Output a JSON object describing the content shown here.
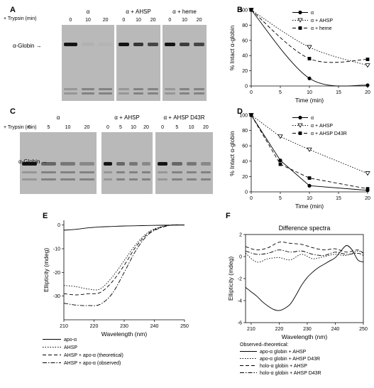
{
  "panels": {
    "A": {
      "letter": "A",
      "trypsin_label": "+ Trypsin (min)",
      "groups": [
        {
          "title": "α",
          "times": [
            "0",
            "10",
            "20"
          ]
        },
        {
          "title": "α + AHSP",
          "times": [
            "0",
            "10",
            "20"
          ]
        },
        {
          "title": "α + heme",
          "times": [
            "0",
            "10",
            "20"
          ]
        }
      ],
      "band_label": "α-Globin",
      "band_intensity": [
        [
          1,
          0.05,
          0.03
        ],
        [
          1,
          0.8,
          0.7
        ],
        [
          1,
          0.75,
          0.7
        ]
      ]
    },
    "C": {
      "letter": "C",
      "trypsin_label": "+ Trypsin (min)",
      "groups": [
        {
          "title": "α",
          "times": [
            "0",
            "5",
            "10",
            "20"
          ]
        },
        {
          "title": "α + AHSP",
          "times": [
            "0",
            "5",
            "10",
            "20"
          ]
        },
        {
          "title": "α + AHSP D43R",
          "times": [
            "0",
            "5",
            "10",
            "20"
          ]
        }
      ],
      "band_label": "α-Globin"
    },
    "E": {
      "letter": "E"
    },
    "F": {
      "letter": "F"
    },
    "B": {
      "letter": "B"
    },
    "D": {
      "letter": "D"
    }
  },
  "chart_data": [
    {
      "id": "B",
      "type": "line",
      "xlabel": "Time (min)",
      "ylabel": "% Intact α-globin",
      "xlim": [
        0,
        20
      ],
      "ylim": [
        0,
        100
      ],
      "xticks": [
        0,
        5,
        10,
        15,
        20
      ],
      "yticks": [
        0,
        20,
        40,
        60,
        80,
        100
      ],
      "legend_position": "top-right",
      "series": [
        {
          "name": "α",
          "style": "solid",
          "marker": "circle",
          "x": [
            0,
            10,
            20
          ],
          "y": [
            100,
            10,
            1
          ]
        },
        {
          "name": "α + AHSP",
          "style": "dotted",
          "marker": "triangle-down",
          "x": [
            0,
            10,
            20
          ],
          "y": [
            100,
            51,
            27
          ]
        },
        {
          "name": "α + heme",
          "style": "dashed",
          "marker": "square",
          "x": [
            0,
            10,
            20
          ],
          "y": [
            100,
            36,
            35
          ]
        }
      ]
    },
    {
      "id": "D",
      "type": "line",
      "xlabel": "Time (min)",
      "ylabel": "% Intact α-globin",
      "xlim": [
        0,
        20
      ],
      "ylim": [
        0,
        100
      ],
      "xticks": [
        0,
        5,
        10,
        15,
        20
      ],
      "yticks": [
        0,
        20,
        40,
        60,
        80,
        100
      ],
      "legend_position": "top-right",
      "series": [
        {
          "name": "α",
          "style": "solid",
          "marker": "circle",
          "x": [
            0,
            5,
            10,
            20
          ],
          "y": [
            100,
            41,
            8,
            2
          ]
        },
        {
          "name": "α + AHSP",
          "style": "dotted",
          "marker": "triangle-down",
          "x": [
            0,
            5,
            10,
            20
          ],
          "y": [
            100,
            72,
            55,
            24
          ]
        },
        {
          "name": "α + AHSP D43R",
          "style": "dashed",
          "marker": "square",
          "x": [
            0,
            5,
            10,
            20
          ],
          "y": [
            100,
            36,
            18,
            4
          ]
        }
      ]
    },
    {
      "id": "E",
      "type": "line",
      "xlabel": "Wavelength (nm)",
      "ylabel": "Ellipticity (mdeg)",
      "xlim": [
        210,
        250
      ],
      "ylim": [
        -40,
        2
      ],
      "xticks": [
        210,
        220,
        230,
        240,
        250
      ],
      "yticks": [
        0,
        -10,
        -20,
        -30
      ],
      "legend_position": "below",
      "series": [
        {
          "name": "apo-α",
          "style": "solid",
          "x": [
            210,
            214,
            218,
            222,
            226,
            230,
            234,
            238,
            242,
            246,
            250
          ],
          "y": [
            -2.2,
            -1.8,
            -1.2,
            -0.8,
            -0.6,
            -0.4,
            -0.3,
            -0.2,
            -0.1,
            -0.05,
            0
          ]
        },
        {
          "name": "AHSP",
          "style": "dotted",
          "x": [
            210,
            214,
            218,
            222,
            226,
            230,
            234,
            238,
            242,
            246,
            250
          ],
          "y": [
            -25.5,
            -26,
            -27,
            -27,
            -22,
            -15,
            -8,
            -3,
            -0.8,
            0,
            0
          ]
        },
        {
          "name": "AHSP + apo-α (theoretical)",
          "style": "dashed",
          "x": [
            210,
            214,
            218,
            222,
            226,
            230,
            234,
            238,
            242,
            246,
            250
          ],
          "y": [
            -29,
            -29.5,
            -29,
            -28.5,
            -24,
            -17,
            -9,
            -3.5,
            -1,
            0,
            0
          ]
        },
        {
          "name": "AHSP + apo-α (observed)",
          "style": "dashdot",
          "x": [
            210,
            214,
            218,
            222,
            226,
            230,
            234,
            238,
            242,
            246,
            250
          ],
          "y": [
            -33,
            -33.8,
            -34,
            -33.5,
            -29,
            -20,
            -10.5,
            -4,
            -1.2,
            0,
            0
          ]
        }
      ]
    },
    {
      "id": "F",
      "type": "line",
      "title": "Difference spectra",
      "xlabel": "Wavelength (nm)",
      "ylabel": "Ellipticity (mdeg)",
      "xlim": [
        208,
        250
      ],
      "ylim": [
        -6,
        2
      ],
      "xticks": [
        210,
        220,
        230,
        240,
        250
      ],
      "yticks": [
        2,
        0,
        -2,
        -4,
        -6
      ],
      "legend_title": "Observed–theoretical:",
      "legend_position": "below",
      "series": [
        {
          "name": "apo-α globin + AHSP",
          "style": "solid",
          "x": [
            208,
            210,
            212,
            214,
            216,
            218,
            220,
            222,
            224,
            226,
            228,
            230,
            232,
            234,
            236,
            238,
            240,
            242,
            244,
            246,
            248,
            250
          ],
          "y": [
            -2.8,
            -3.2,
            -3.6,
            -4.1,
            -4.5,
            -4.8,
            -4.9,
            -4.7,
            -4.3,
            -3.5,
            -2.6,
            -1.9,
            -1.4,
            -1.0,
            -0.7,
            -0.4,
            -0.1,
            0.5,
            1.0,
            0.6,
            -0.3,
            -0.5
          ]
        },
        {
          "name": "apo-α globin + AHSP D43R",
          "style": "dotted",
          "x": [
            208,
            212,
            216,
            220,
            224,
            228,
            232,
            236,
            240,
            244,
            248,
            250
          ],
          "y": [
            0.3,
            -0.5,
            -0.2,
            -0.1,
            -0.3,
            0.2,
            -0.2,
            0.0,
            0.2,
            0.1,
            0.5,
            0.3
          ]
        },
        {
          "name": "holo-α globin + AHSP",
          "style": "dashed",
          "x": [
            208,
            212,
            216,
            220,
            224,
            228,
            232,
            236,
            240,
            244,
            248,
            250
          ],
          "y": [
            0.9,
            0.6,
            0.8,
            1.3,
            1.2,
            1.1,
            0.8,
            0.6,
            0.7,
            0.4,
            0.6,
            0.3
          ]
        },
        {
          "name": "holo-α globin + AHSP D43R",
          "style": "dashdot",
          "x": [
            208,
            212,
            216,
            220,
            224,
            228,
            232,
            236,
            240,
            244,
            248,
            250
          ],
          "y": [
            0.5,
            0.2,
            0.3,
            0.6,
            0.4,
            0.5,
            0.2,
            0.1,
            0.4,
            0.2,
            0.3,
            0.1
          ]
        }
      ]
    }
  ]
}
